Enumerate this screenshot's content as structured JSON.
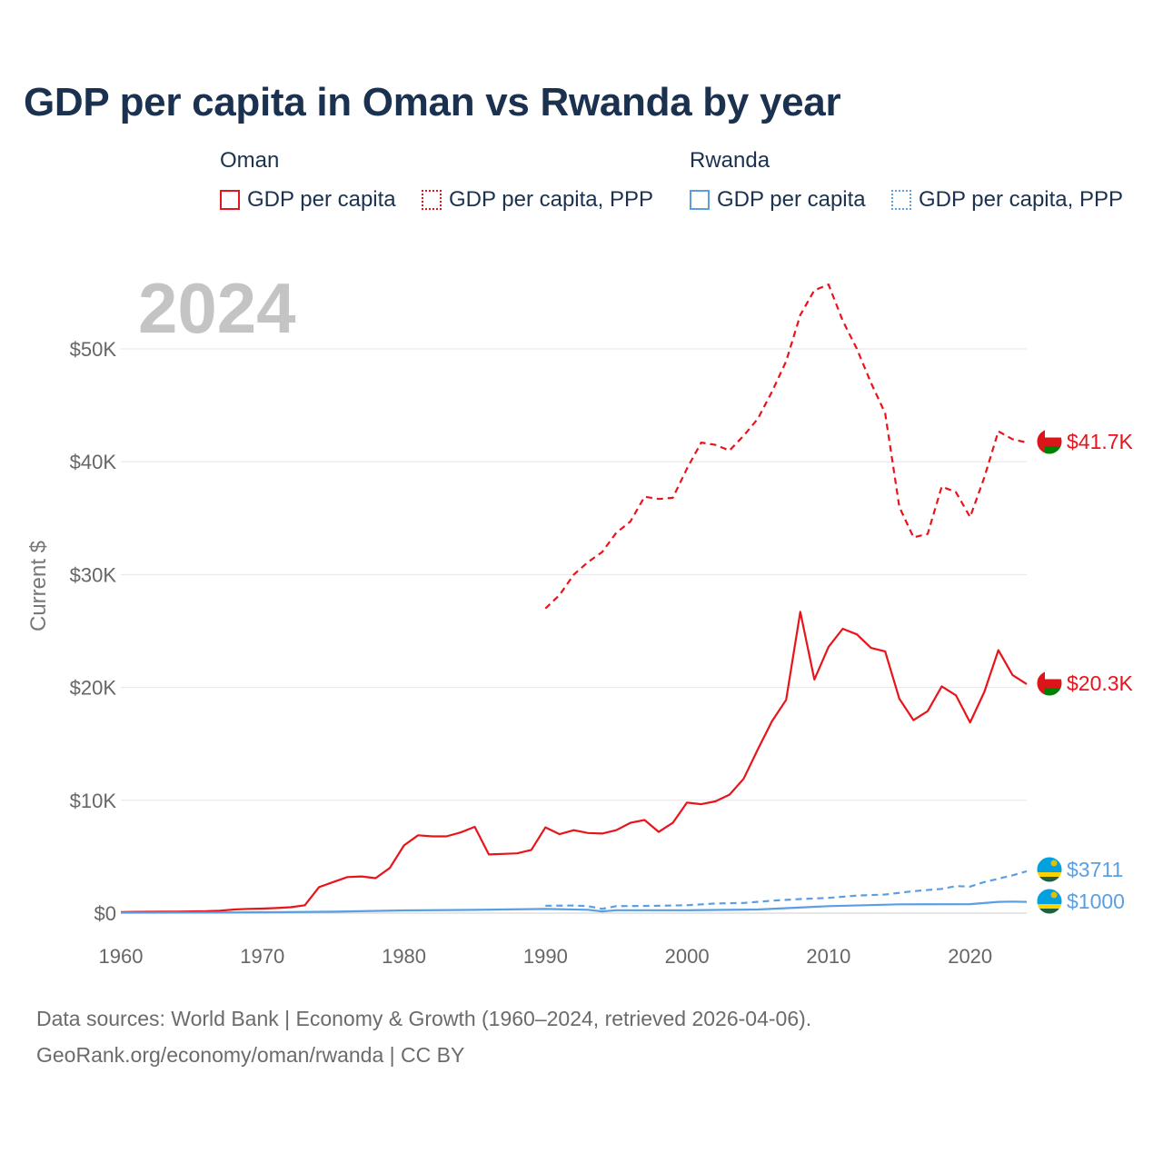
{
  "title": "GDP per capita in Oman vs Rwanda by year",
  "year_label": "2024",
  "legend": {
    "groups": [
      {
        "name": "Oman",
        "items": [
          {
            "label": "GDP per capita",
            "color": "#e8141b",
            "style": "solid"
          },
          {
            "label": "GDP per capita, PPP",
            "color": "#e8141b",
            "style": "dotted"
          }
        ]
      },
      {
        "name": "Rwanda",
        "items": [
          {
            "label": "GDP per capita",
            "color": "#5a9fe3",
            "style": "solid"
          },
          {
            "label": "GDP per capita, PPP",
            "color": "#5a9fe3",
            "style": "dotted"
          }
        ]
      }
    ]
  },
  "footer": {
    "line1": "Data sources: World Bank | Economy & Growth (1960–2024, retrieved 2026-04-06).",
    "line2": "GeoRank.org/economy/oman/rwanda | CC BY"
  },
  "chart_data": {
    "type": "line",
    "title": "GDP per capita in Oman vs Rwanda by year",
    "xlabel": "",
    "ylabel": "Current $",
    "xlim": [
      1960,
      2024
    ],
    "ylim": [
      0,
      55000
    ],
    "grid": true,
    "x_ticks": [
      1960,
      1970,
      1980,
      1990,
      2000,
      2010,
      2020
    ],
    "x_tick_labels": [
      "1960",
      "1970",
      "1980",
      "1990",
      "2000",
      "2010",
      "2020"
    ],
    "y_ticks": [
      0,
      10000,
      20000,
      30000,
      40000,
      50000
    ],
    "y_tick_labels": [
      "$0",
      "$10K",
      "$20K",
      "$30K",
      "$40K",
      "$50K"
    ],
    "series": [
      {
        "name": "Oman GDP per capita",
        "country": "Oman",
        "color": "#e8141b",
        "dash": "solid",
        "end_label": "$20.3K",
        "flag": "oman-flag",
        "x": [
          1960,
          1961,
          1962,
          1963,
          1964,
          1965,
          1966,
          1967,
          1968,
          1969,
          1970,
          1971,
          1972,
          1973,
          1974,
          1975,
          1976,
          1977,
          1978,
          1979,
          1980,
          1981,
          1982,
          1983,
          1984,
          1985,
          1986,
          1987,
          1988,
          1989,
          1990,
          1991,
          1992,
          1993,
          1994,
          1995,
          1996,
          1997,
          1998,
          1999,
          2000,
          2001,
          2002,
          2003,
          2004,
          2005,
          2006,
          2007,
          2008,
          2009,
          2010,
          2011,
          2012,
          2013,
          2014,
          2015,
          2016,
          2017,
          2018,
          2019,
          2020,
          2021,
          2022,
          2023,
          2024
        ],
        "values": [
          100,
          110,
          120,
          130,
          140,
          150,
          170,
          220,
          320,
          380,
          400,
          450,
          520,
          700,
          2300,
          2750,
          3200,
          3250,
          3100,
          4000,
          6000,
          6900,
          6800,
          6800,
          7150,
          7650,
          5200,
          5250,
          5300,
          5600,
          7600,
          7000,
          7350,
          7100,
          7050,
          7350,
          8000,
          8250,
          7200,
          8000,
          9800,
          9650,
          9900,
          10500,
          11900,
          14500,
          17000,
          18900,
          26700,
          20700,
          23600,
          25200,
          24700,
          23500,
          23200,
          19000,
          17100,
          17900,
          20100,
          19300,
          16900,
          19600,
          23300,
          21100,
          20300
        ]
      },
      {
        "name": "Oman GDP per capita, PPP",
        "country": "Oman",
        "color": "#e8141b",
        "dash": "dashed",
        "end_label": "$41.7K",
        "flag": "oman-flag",
        "x": [
          1990,
          1991,
          1992,
          1993,
          1994,
          1995,
          1996,
          1997,
          1998,
          1999,
          2000,
          2001,
          2002,
          2003,
          2004,
          2005,
          2006,
          2007,
          2008,
          2009,
          2010,
          2011,
          2012,
          2013,
          2014,
          2015,
          2016,
          2017,
          2018,
          2019,
          2020,
          2021,
          2022,
          2023,
          2024
        ],
        "values": [
          27000,
          28200,
          30000,
          31100,
          32000,
          33700,
          34700,
          36900,
          36700,
          36800,
          39400,
          41700,
          41500,
          41000,
          42300,
          43800,
          46200,
          48900,
          53000,
          55200,
          55700,
          52500,
          50000,
          47000,
          44300,
          36000,
          33300,
          33600,
          37800,
          37300,
          35100,
          38600,
          42700,
          42000,
          41700
        ]
      },
      {
        "name": "Rwanda GDP per capita",
        "country": "Rwanda",
        "color": "#5a9fe3",
        "dash": "solid",
        "end_label": "$1000",
        "flag": "rwanda-flag",
        "x": [
          1960,
          1965,
          1970,
          1975,
          1980,
          1985,
          1990,
          1993,
          1994,
          1995,
          2000,
          2005,
          2010,
          2015,
          2020,
          2022,
          2023,
          2024
        ],
        "values": [
          40,
          50,
          70,
          130,
          240,
          290,
          370,
          300,
          150,
          260,
          260,
          320,
          620,
          780,
          800,
          1000,
          1020,
          1000
        ]
      },
      {
        "name": "Rwanda GDP per capita, PPP",
        "country": "Rwanda",
        "color": "#5a9fe3",
        "dash": "dashed",
        "end_label": "$3711",
        "flag": "rwanda-flag",
        "x": [
          1990,
          1992,
          1993,
          1994,
          1995,
          1998,
          2000,
          2002,
          2004,
          2006,
          2008,
          2010,
          2012,
          2014,
          2016,
          2018,
          2019,
          2020,
          2021,
          2022,
          2023,
          2024
        ],
        "values": [
          650,
          680,
          620,
          380,
          620,
          650,
          700,
          850,
          900,
          1100,
          1250,
          1350,
          1550,
          1650,
          1950,
          2150,
          2400,
          2350,
          2750,
          3050,
          3350,
          3711
        ]
      }
    ]
  }
}
